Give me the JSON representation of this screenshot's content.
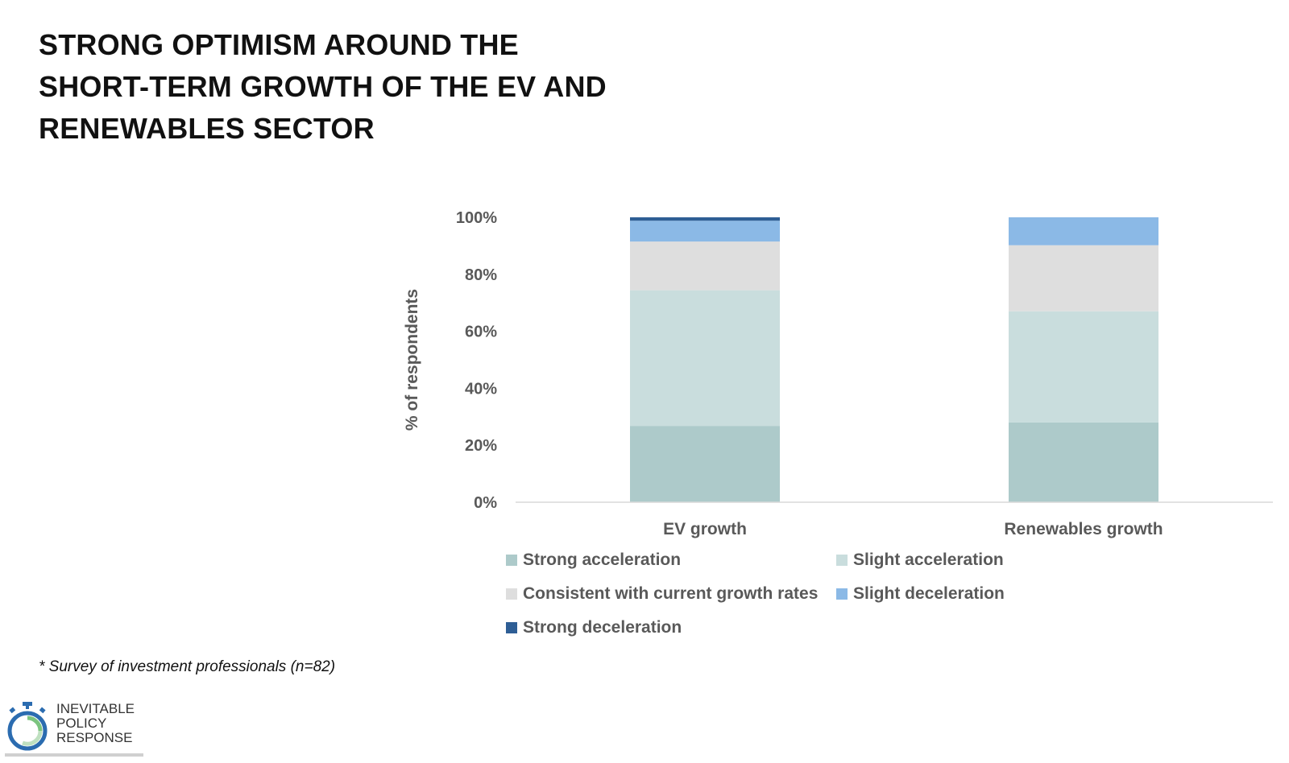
{
  "title_lines": [
    "STRONG OPTIMISM AROUND THE",
    "SHORT-TERM GROWTH OF THE EV AND",
    "RENEWABLES SECTOR"
  ],
  "footnote": "* Survey of investment professionals (n=82)",
  "logo": {
    "lines": [
      "INEVITABLE",
      "POLICY",
      "RESPONSE"
    ],
    "icon": "stopwatch-ring-icon"
  },
  "chart_data": {
    "type": "bar",
    "stacked": true,
    "ylabel": "% of respondents",
    "ylim": [
      0,
      100
    ],
    "yticks": [
      "0%",
      "20%",
      "40%",
      "60%",
      "80%",
      "100%"
    ],
    "yticks_values": [
      0,
      20,
      40,
      60,
      80,
      100
    ],
    "categories": [
      "EV growth",
      "Renewables growth"
    ],
    "grid": false,
    "legend_position": "bottom",
    "series": [
      {
        "name": "Strong acceleration",
        "color": "#adcaca",
        "values": [
          26.8,
          28.0
        ]
      },
      {
        "name": "Slight acceleration",
        "color": "#c9dddd",
        "values": [
          47.6,
          39.0
        ]
      },
      {
        "name": "Consistent with current growth rates",
        "color": "#dedede",
        "values": [
          17.1,
          23.2
        ]
      },
      {
        "name": "Slight deceleration",
        "color": "#8bb9e6",
        "values": [
          7.3,
          9.8
        ]
      },
      {
        "name": "Strong deceleration",
        "color": "#2e5e95",
        "values": [
          1.2,
          0.0
        ]
      }
    ]
  }
}
